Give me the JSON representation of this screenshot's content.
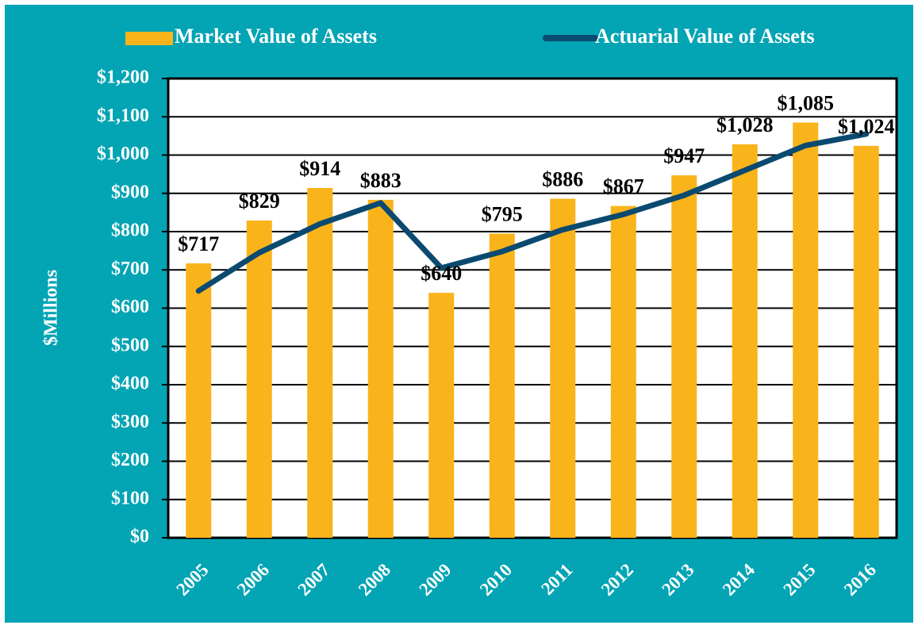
{
  "chart_data": {
    "type": "bar",
    "y_axis_label": "$Millions",
    "categories": [
      "2005",
      "2006",
      "2007",
      "2008",
      "2009",
      "2010",
      "2011",
      "2012",
      "2013",
      "2014",
      "2015",
      "2016"
    ],
    "series": [
      {
        "name": "Market Value of Assets",
        "type": "bar",
        "color": "#f9b41b",
        "values": [
          717,
          829,
          914,
          883,
          640,
          795,
          886,
          867,
          947,
          1028,
          1085,
          1024
        ],
        "value_labels": [
          "$717",
          "$829",
          "$914",
          "$883",
          "$640",
          "$795",
          "$886",
          "$867",
          "$947",
          "$1,028",
          "$1,085",
          "$1,024"
        ]
      },
      {
        "name": "Actuarial Value of Assets",
        "type": "line",
        "color": "#0b4a70",
        "values": [
          645,
          745,
          820,
          875,
          705,
          748,
          805,
          845,
          895,
          960,
          1025,
          1055
        ]
      }
    ],
    "ylim": [
      0,
      1200
    ],
    "yticks": [
      {
        "value": 0,
        "label": "$0"
      },
      {
        "value": 100,
        "label": "$100"
      },
      {
        "value": 200,
        "label": "$200"
      },
      {
        "value": 300,
        "label": "$300"
      },
      {
        "value": 400,
        "label": "$400"
      },
      {
        "value": 500,
        "label": "$500"
      },
      {
        "value": 600,
        "label": "$600"
      },
      {
        "value": 700,
        "label": "$700"
      },
      {
        "value": 800,
        "label": "$800"
      },
      {
        "value": 900,
        "label": "$900"
      },
      {
        "value": 1000,
        "label": "$1,000"
      },
      {
        "value": 1100,
        "label": "$1,100"
      },
      {
        "value": 1200,
        "label": "$1,200"
      }
    ],
    "grid": true,
    "legend": "top"
  }
}
